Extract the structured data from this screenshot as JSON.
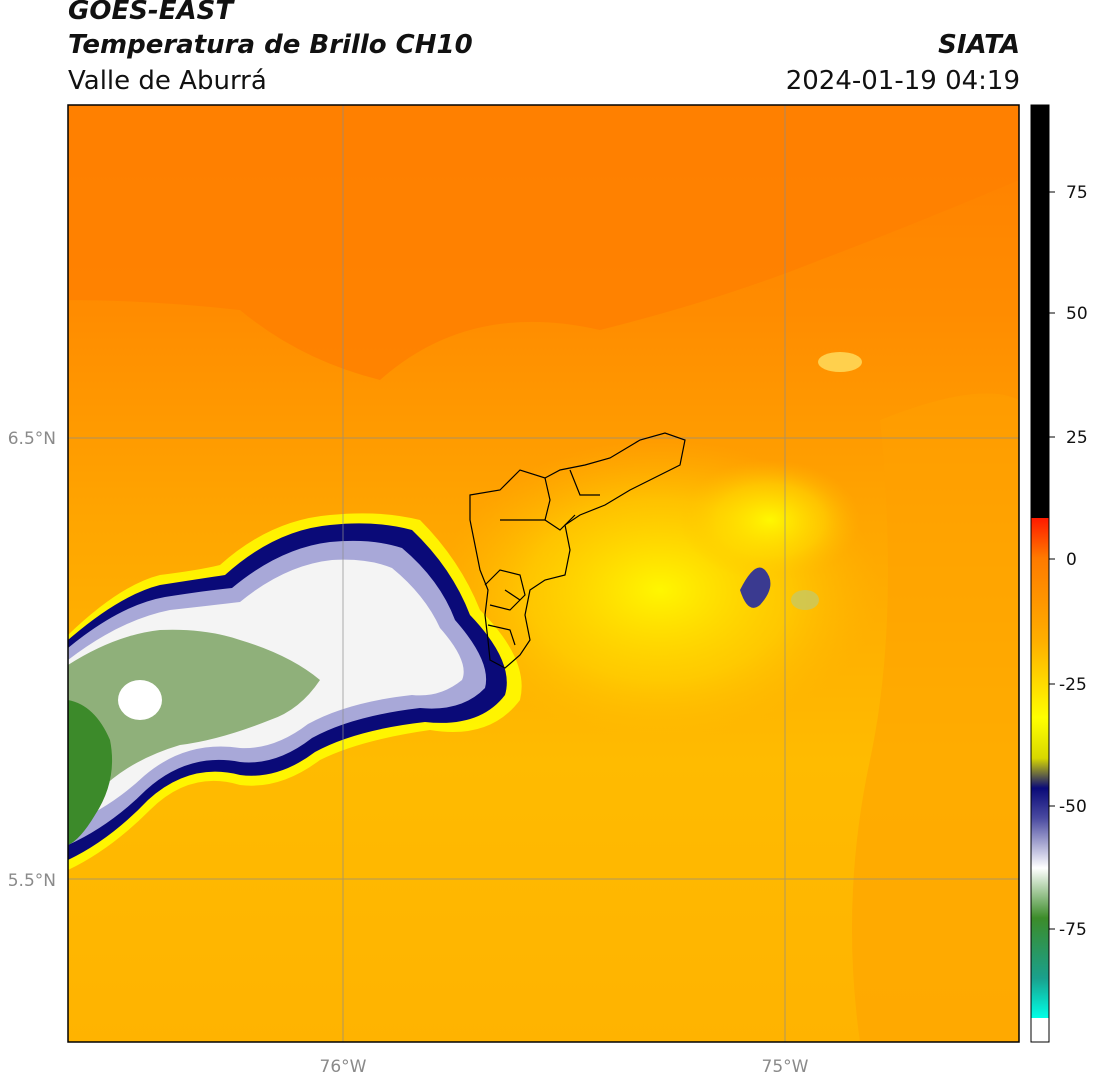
{
  "header": {
    "title_line1": "GOES-EAST",
    "title_line2": "Temperatura de Brillo CH10",
    "region": "Valle de Aburrá",
    "brand": "SIATA",
    "datetime": "2024-01-19 04:19"
  },
  "map": {
    "lat_labels": [
      "6.5°N",
      "5.5°N"
    ],
    "lon_labels": [
      "76°W",
      "75°W"
    ],
    "gridlines": true
  },
  "colorbar": {
    "ticks": [
      "75",
      "50",
      "25",
      "0",
      "-25",
      "-50",
      "-75"
    ],
    "colors": {
      "hot": "#000000",
      "red": "#ff2a00",
      "orange": "#ff7a00",
      "amber": "#ffbf00",
      "yellow": "#ffff00",
      "navy": "#0a0a78",
      "white": "#ffffff",
      "green": "#3c8c2a",
      "teal": "#1aa08c",
      "cyan": "#00ffe6"
    }
  }
}
